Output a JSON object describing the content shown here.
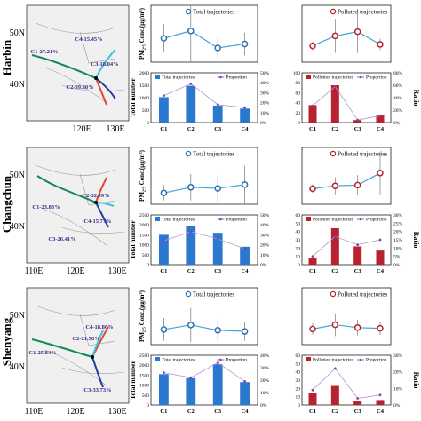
{
  "colors": {
    "line": "#3aa6d8",
    "total_marker": "#2f6fb5",
    "polluted_marker": "#b8222e",
    "bar_total": "#2a78d0",
    "bar_polluted": "#b8222e",
    "proportion": "#8a3fa8",
    "traj_green": "#0f8a55",
    "traj_red": "#e04a2a",
    "traj_blue": "#1c3fa0",
    "traj_cyan": "#3cc3dd",
    "map_bg": "#f0f0f0",
    "map_border": "#9a9a9a"
  },
  "labels": {
    "pm_ylabel": "PM₂.₅ Conc.(μg/m³)",
    "total_number": "Total number",
    "ratio": "Ratio",
    "total_trajectories": "Total trajectories",
    "polluted_trajectories": "Polluted trajectories",
    "pollution_trajectories": "Pollution trajectories",
    "proportion": "Proportion"
  },
  "chart_data": [
    {
      "city": "Harbin",
      "map": {
        "lat_ticks": [
          "50N",
          "40N"
        ],
        "lon_ticks": [
          "120E",
          "130E"
        ],
        "clusters": [
          {
            "label": "C1-27.21%",
            "color": "traj_green"
          },
          {
            "label": "C2-39.30%",
            "color": "traj_red"
          },
          {
            "label": "C3-18.04%",
            "color": "traj_blue"
          },
          {
            "label": "C4-15.45%",
            "color": "traj_cyan"
          }
        ]
      },
      "total_conc": {
        "type": "line",
        "categories": [
          "C1",
          "C2",
          "C3",
          "C4"
        ],
        "values": [
          42,
          55,
          25,
          32
        ],
        "err": [
          25,
          55,
          18,
          20
        ],
        "ylim": [
          0,
          100
        ],
        "legend": "Total trajectories"
      },
      "polluted_conc": {
        "type": "line",
        "categories": [
          "C1",
          "C2",
          "C3",
          "C4"
        ],
        "values": [
          115,
          185,
          215,
          125
        ],
        "err": [
          30,
          120,
          150,
          40
        ],
        "ylim": [
          0,
          400
        ],
        "legend": "Polluted trajectories"
      },
      "total_bar": {
        "type": "bar",
        "categories": [
          "C1",
          "C2",
          "C3",
          "C4"
        ],
        "values": [
          1020,
          1480,
          680,
          560
        ],
        "proportion": [
          27,
          39,
          18,
          15
        ],
        "ylim": [
          0,
          2000
        ],
        "yticks": [
          "0",
          "500",
          "1000",
          "1500",
          "2000"
        ],
        "ratio_ticks": [
          "0%",
          "10%",
          "20%",
          "30%",
          "40%",
          "50%"
        ],
        "ratio_max": 50
      },
      "polluted_bar": {
        "type": "bar",
        "categories": [
          "C1",
          "C2",
          "C3",
          "C4"
        ],
        "values": [
          35,
          75,
          5,
          15
        ],
        "proportion": [
          27,
          58,
          4,
          11
        ],
        "ylim": [
          0,
          100
        ],
        "yticks": [
          "0",
          "20",
          "40",
          "60",
          "80",
          "100"
        ],
        "ratio_ticks": [
          "0%",
          "20%",
          "40%",
          "60%",
          "80%"
        ],
        "ratio_max": 80
      }
    },
    {
      "city": "Changchun",
      "map": {
        "lat_ticks": [
          "50N",
          "40N"
        ],
        "lon_ticks": [
          "110E",
          "120E",
          "130E"
        ],
        "clusters": [
          {
            "label": "C1-23.83%",
            "color": "traj_green"
          },
          {
            "label": "C2-32.99%",
            "color": "traj_red"
          },
          {
            "label": "C3-26.41%",
            "color": "traj_blue"
          },
          {
            "label": "C4-15.77%",
            "color": "traj_cyan"
          }
        ]
      },
      "total_conc": {
        "type": "line",
        "categories": [
          "C1",
          "C2",
          "C3",
          "C4"
        ],
        "values": [
          30,
          45,
          42,
          52
        ],
        "err": [
          20,
          35,
          35,
          50
        ],
        "ylim": [
          0,
          150
        ],
        "legend": "Total trajectories"
      },
      "polluted_conc": {
        "type": "line",
        "categories": [
          "C1",
          "C2",
          "C3",
          "C4"
        ],
        "values": [
          110,
          130,
          135,
          220
        ],
        "err": [
          30,
          60,
          70,
          150
        ],
        "ylim": [
          0,
          400
        ],
        "legend": "Polluted trajectories"
      },
      "total_bar": {
        "type": "bar",
        "categories": [
          "C1",
          "C2",
          "C3",
          "C4"
        ],
        "values": [
          1500,
          1950,
          1600,
          900
        ],
        "proportion": [
          24,
          33,
          26,
          16
        ],
        "ylim": [
          0,
          2500
        ],
        "yticks": [
          "0",
          "500",
          "1000",
          "1500",
          "2000",
          "2500"
        ],
        "ratio_ticks": [
          "0%",
          "10%",
          "20%",
          "30%",
          "40%",
          "50%"
        ],
        "ratio_max": 50
      },
      "polluted_bar": {
        "type": "bar",
        "categories": [
          "C1",
          "C2",
          "C3",
          "C4"
        ],
        "values": [
          8,
          44,
          22,
          17
        ],
        "proportion": [
          5,
          17,
          12,
          15
        ],
        "ylim": [
          0,
          60
        ],
        "yticks": [
          "0",
          "10",
          "20",
          "30",
          "40",
          "50",
          "60"
        ],
        "ratio_ticks": [
          "0%",
          "5%",
          "10%",
          "15%",
          "20%",
          "25%",
          "30%"
        ],
        "ratio_max": 30
      }
    },
    {
      "city": "Shenyang",
      "map": {
        "lat_ticks": [
          "50N",
          "40N"
        ],
        "lon_ticks": [
          "110E",
          "120E",
          "130E"
        ],
        "clusters": [
          {
            "label": "C1-25.84%",
            "color": "traj_green"
          },
          {
            "label": "C2-21.56%",
            "color": "traj_red"
          },
          {
            "label": "C3-33.73%",
            "color": "traj_blue"
          },
          {
            "label": "C4-18.86%",
            "color": "traj_cyan"
          }
        ]
      },
      "total_conc": {
        "type": "line",
        "categories": [
          "C1",
          "C2",
          "C3",
          "C4"
        ],
        "values": [
          40,
          52,
          38,
          35
        ],
        "err": [
          30,
          45,
          30,
          25
        ],
        "ylim": [
          0,
          150
        ],
        "legend": "Total trajectories"
      },
      "polluted_conc": {
        "type": "line",
        "categories": [
          "C1",
          "C2",
          "C3",
          "C4"
        ],
        "values": [
          110,
          140,
          120,
          115
        ],
        "err": [
          40,
          80,
          55,
          45
        ],
        "ylim": [
          0,
          400
        ],
        "legend": "Polluted trajectories"
      },
      "total_bar": {
        "type": "bar",
        "categories": [
          "C1",
          "C2",
          "C3",
          "C4"
        ],
        "values": [
          1550,
          1350,
          2050,
          1150
        ],
        "proportion": [
          26,
          22,
          34,
          19
        ],
        "ylim": [
          0,
          2500
        ],
        "yticks": [
          "0",
          "500",
          "1000",
          "1500",
          "2000",
          "2500"
        ],
        "ratio_ticks": [
          "0%",
          "10%",
          "20%",
          "30%",
          "40%"
        ],
        "ratio_max": 40
      },
      "polluted_bar": {
        "type": "bar",
        "categories": [
          "C1",
          "C2",
          "C3",
          "C4"
        ],
        "values": [
          15,
          23,
          5,
          6
        ],
        "proportion": [
          9,
          22,
          4,
          6
        ],
        "ylim": [
          0,
          60
        ],
        "yticks": [
          "0",
          "10",
          "20",
          "30",
          "40",
          "50",
          "60"
        ],
        "ratio_ticks": [
          "0%",
          "10%",
          "20%",
          "30%"
        ],
        "ratio_max": 30
      }
    }
  ]
}
